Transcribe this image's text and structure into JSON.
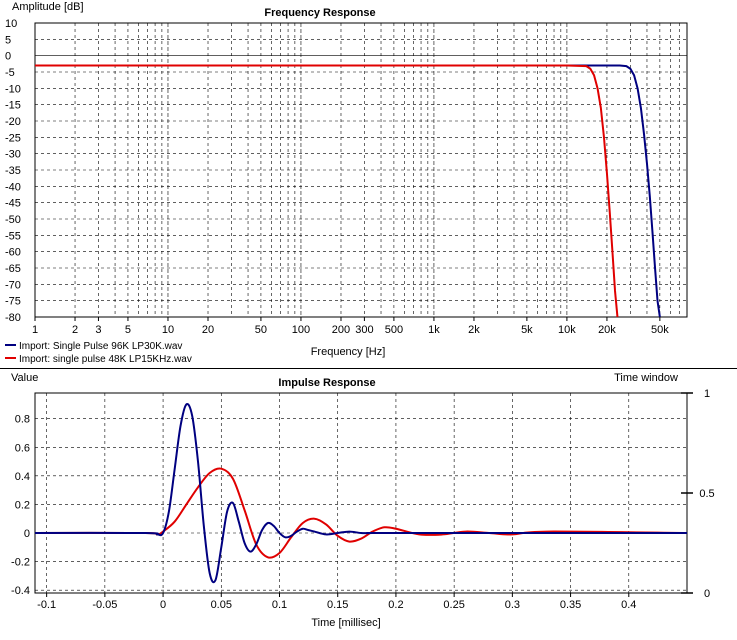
{
  "chart_data": [
    {
      "type": "line",
      "title": "Frequency Response",
      "xlabel": "Frequency [Hz]",
      "ylabel": "Amplitude [dB]",
      "xscale": "log",
      "xlim": [
        1,
        80000
      ],
      "ylim": [
        -80,
        10
      ],
      "grid": true,
      "legend_position": "bottom-left",
      "xticks": [
        {
          "v": 1,
          "label": "1"
        },
        {
          "v": 2,
          "label": "2"
        },
        {
          "v": 3,
          "label": "3"
        },
        {
          "v": 5,
          "label": "5"
        },
        {
          "v": 10,
          "label": "10"
        },
        {
          "v": 20,
          "label": "20"
        },
        {
          "v": 50,
          "label": "50"
        },
        {
          "v": 100,
          "label": "100"
        },
        {
          "v": 200,
          "label": "200"
        },
        {
          "v": 300,
          "label": "300"
        },
        {
          "v": 500,
          "label": "500"
        },
        {
          "v": 1000,
          "label": "1k"
        },
        {
          "v": 2000,
          "label": "2k"
        },
        {
          "v": 5000,
          "label": "5k"
        },
        {
          "v": 10000,
          "label": "10k"
        },
        {
          "v": 20000,
          "label": "20k"
        },
        {
          "v": 50000,
          "label": "50k"
        }
      ],
      "yticks": [
        "10",
        "5",
        "0",
        "-5",
        "-10",
        "-15",
        "-20",
        "-25",
        "-30",
        "-35",
        "-40",
        "-45",
        "-50",
        "-55",
        "-60",
        "-65",
        "-70",
        "-75",
        "-80"
      ],
      "series": [
        {
          "name": "Import: Single Pulse 96K LP30K.wav",
          "color": "#000080",
          "x": [
            1,
            1000,
            10000,
            20000,
            25000,
            28000,
            30000,
            32000,
            34000,
            36000,
            38000,
            40000,
            42000,
            44000,
            46000,
            48000,
            50000
          ],
          "y": [
            -3,
            -3,
            -3,
            -3,
            -3,
            -3.2,
            -4,
            -6,
            -10,
            -16,
            -24,
            -33,
            -43,
            -54,
            -65,
            -75,
            -80
          ]
        },
        {
          "name": "Import: single pulse 48K LP15KHz.wav",
          "color": "#e00000",
          "x": [
            1,
            1000,
            10000,
            14000,
            15000,
            16000,
            17000,
            18000,
            19000,
            20000,
            21000,
            22000,
            23000,
            24000
          ],
          "y": [
            -3,
            -3,
            -3,
            -3.2,
            -4,
            -6,
            -10,
            -16,
            -25,
            -36,
            -48,
            -60,
            -72,
            -80
          ]
        }
      ]
    },
    {
      "type": "line",
      "title": "Impulse Response",
      "xlabel": "Time [millisec]",
      "ylabel": "Value",
      "y2label": "Time window",
      "xlim": [
        -0.11,
        0.45
      ],
      "ylim": [
        -0.42,
        0.98
      ],
      "y2lim": [
        0,
        1
      ],
      "grid": true,
      "xticks": [
        {
          "v": -0.1,
          "label": "-0.1"
        },
        {
          "v": -0.05,
          "label": "-0.05"
        },
        {
          "v": 0,
          "label": "0"
        },
        {
          "v": 0.05,
          "label": "0.05"
        },
        {
          "v": 0.1,
          "label": "0.1"
        },
        {
          "v": 0.15,
          "label": "0.15"
        },
        {
          "v": 0.2,
          "label": "0.2"
        },
        {
          "v": 0.25,
          "label": "0.25"
        },
        {
          "v": 0.3,
          "label": "0.3"
        },
        {
          "v": 0.35,
          "label": "0.35"
        },
        {
          "v": 0.4,
          "label": "0.4"
        }
      ],
      "yticks": [
        {
          "v": 0.8,
          "label": "0.8"
        },
        {
          "v": 0.6,
          "label": "0.6"
        },
        {
          "v": 0.4,
          "label": "0.4"
        },
        {
          "v": 0.2,
          "label": "0.2"
        },
        {
          "v": 0,
          "label": "0"
        },
        {
          "v": -0.2,
          "label": "-0.2"
        },
        {
          "v": -0.4,
          "label": "-0.4"
        }
      ],
      "y2ticks": [
        {
          "v": 1,
          "label": "1"
        },
        {
          "v": 0.5,
          "label": "0.5"
        },
        {
          "v": 0,
          "label": "0"
        }
      ],
      "series": [
        {
          "name": "Import: Single Pulse 96K LP30K.wav",
          "color": "#000080",
          "x": [
            -0.11,
            -0.015,
            -0.005,
            0.0,
            0.005,
            0.01,
            0.015,
            0.02,
            0.025,
            0.03,
            0.035,
            0.04,
            0.045,
            0.05,
            0.055,
            0.06,
            0.065,
            0.07,
            0.075,
            0.08,
            0.085,
            0.09,
            0.095,
            0.1,
            0.105,
            0.11,
            0.115,
            0.12,
            0.125,
            0.13,
            0.14,
            0.15,
            0.16,
            0.17,
            0.18,
            0.2,
            0.45
          ],
          "y": [
            0,
            0,
            -0.01,
            0.0,
            0.15,
            0.45,
            0.75,
            0.9,
            0.82,
            0.5,
            0.05,
            -0.28,
            -0.33,
            -0.1,
            0.15,
            0.21,
            0.08,
            -0.07,
            -0.13,
            -0.08,
            0.02,
            0.07,
            0.05,
            0.0,
            -0.03,
            -0.02,
            0.01,
            0.03,
            0.02,
            0.01,
            -0.01,
            0.0,
            0.01,
            0.0,
            0.0,
            0.0,
            0
          ]
        },
        {
          "name": "Import: single pulse 48K LP15KHz.wav",
          "color": "#e00000",
          "x": [
            -0.11,
            -0.015,
            -0.005,
            0.0,
            0.01,
            0.02,
            0.03,
            0.04,
            0.05,
            0.06,
            0.07,
            0.08,
            0.09,
            0.1,
            0.11,
            0.12,
            0.13,
            0.14,
            0.15,
            0.16,
            0.17,
            0.18,
            0.19,
            0.2,
            0.22,
            0.24,
            0.26,
            0.28,
            0.3,
            0.33,
            0.45
          ],
          "y": [
            0,
            0,
            -0.01,
            0.01,
            0.08,
            0.2,
            0.32,
            0.42,
            0.45,
            0.38,
            0.16,
            -0.08,
            -0.17,
            -0.14,
            -0.03,
            0.07,
            0.1,
            0.06,
            -0.02,
            -0.06,
            -0.04,
            0.01,
            0.04,
            0.03,
            -0.01,
            -0.01,
            0.01,
            0.0,
            -0.01,
            0.01,
            0
          ]
        }
      ]
    }
  ]
}
